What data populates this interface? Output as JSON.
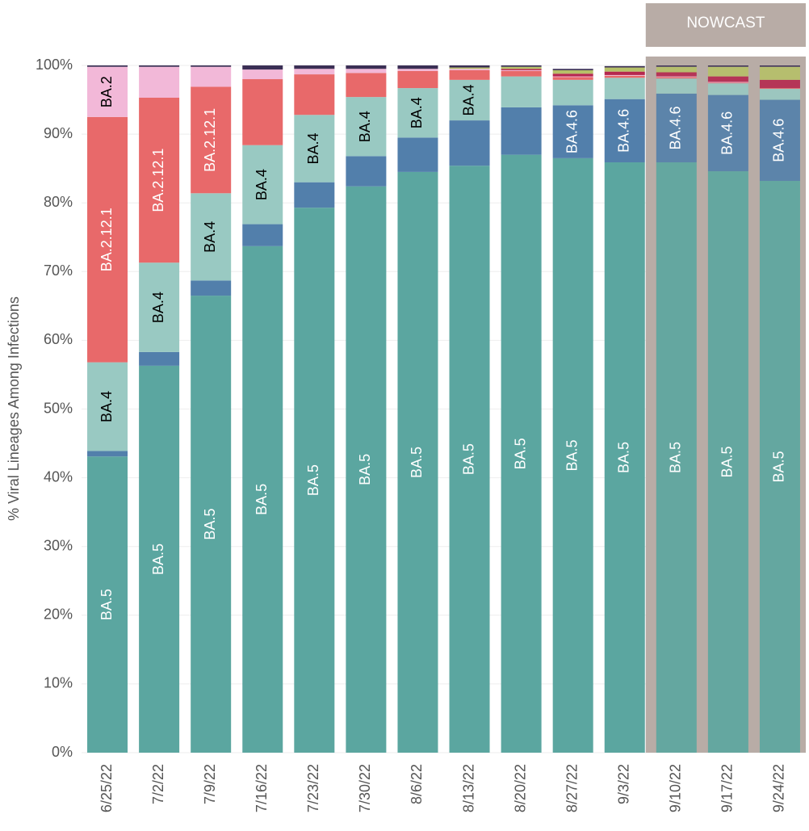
{
  "chart_data": {
    "type": "stacked-bar",
    "y_label": "% Viral Lineages Among Infections",
    "categories": [
      "6/25/22",
      "7/2/22",
      "7/9/22",
      "7/16/22",
      "7/23/22",
      "7/30/22",
      "8/6/22",
      "8/13/22",
      "8/20/22",
      "8/27/22",
      "9/3/22",
      "9/10/22",
      "9/17/22",
      "9/24/22"
    ],
    "nowcast": {
      "label": "NOWCAST",
      "from": "9/10/22"
    },
    "ylim": [
      0,
      100
    ],
    "yticks": [
      {
        "value": 0,
        "label": "0%"
      },
      {
        "value": 10,
        "label": "10%"
      },
      {
        "value": 20,
        "label": "20%"
      },
      {
        "value": 30,
        "label": "30%"
      },
      {
        "value": 40,
        "label": "40%"
      },
      {
        "value": 50,
        "label": "50%"
      },
      {
        "value": 60,
        "label": "60%"
      },
      {
        "value": 70,
        "label": "70%"
      },
      {
        "value": 80,
        "label": "80%"
      },
      {
        "value": 90,
        "label": "90%"
      },
      {
        "value": 100,
        "label": "100%"
      }
    ],
    "grid": true,
    "series": [
      {
        "name": "BA.5",
        "color": "#5ba6a0",
        "label_color": "#ffffff",
        "values": [
          43.1,
          56.3,
          66.5,
          73.7,
          79.3,
          82.4,
          84.5,
          85.4,
          87.0,
          86.5,
          85.9,
          85.9,
          84.6,
          83.2
        ],
        "value_labels": [
          "BA.5",
          "BA.5",
          "BA.5",
          "BA.5",
          "BA.5",
          "BA.5",
          "BA.5",
          "BA.5",
          "BA.5",
          "BA.5",
          "BA.5",
          "BA.5",
          "BA.5",
          "BA.5"
        ]
      },
      {
        "name": "BA.4.6",
        "color": "#527fab",
        "label_color": "#ffffff",
        "values": [
          0.8,
          2.0,
          2.2,
          3.2,
          3.7,
          4.4,
          5.0,
          6.6,
          6.9,
          7.7,
          9.2,
          10.0,
          11.1,
          11.8
        ],
        "value_labels": [
          null,
          null,
          null,
          null,
          null,
          null,
          null,
          null,
          null,
          "BA.4.6",
          "BA.4.6",
          "BA.4.6",
          "BA.4.6",
          "BA.4.6"
        ]
      },
      {
        "name": "BA.4",
        "color": "#99c9c2",
        "label_color": "#000000",
        "values": [
          12.9,
          13.0,
          12.7,
          11.5,
          9.8,
          8.6,
          7.2,
          5.9,
          4.5,
          3.7,
          3.1,
          2.2,
          1.7,
          1.6
        ],
        "value_labels": [
          "BA.4",
          "BA.4",
          "BA.4",
          "BA.4",
          "BA.4",
          "BA.4",
          "BA.4",
          "BA.4",
          null,
          null,
          null,
          null,
          null,
          null
        ]
      },
      {
        "name": "BA.2.12.1",
        "color": "#e8696a",
        "label_color": "#ffffff",
        "values": [
          35.7,
          24.0,
          15.5,
          9.6,
          5.9,
          3.5,
          2.5,
          1.4,
          0.8,
          0.4,
          0.3,
          0.2,
          0.1,
          0.1
        ],
        "value_labels": [
          "BA.2.12.1",
          "BA.2.12.1",
          "BA.2.12.1",
          null,
          null,
          null,
          null,
          null,
          null,
          null,
          null,
          null,
          null,
          null
        ]
      },
      {
        "name": "BA.2",
        "color": "#f2b8d8",
        "label_color": "#000000",
        "values": [
          7.3,
          4.5,
          2.9,
          1.4,
          0.8,
          0.6,
          0.3,
          0.2,
          0.1,
          0.1,
          0.1,
          0.1,
          0.1,
          0
        ],
        "value_labels": [
          "BA.2",
          null,
          null,
          null,
          null,
          null,
          null,
          null,
          null,
          null,
          null,
          null,
          null,
          null
        ]
      },
      {
        "color": "#b5284f",
        "values": [
          0,
          0,
          0,
          0,
          0,
          0,
          0,
          0,
          0.2,
          0.4,
          0.5,
          0.6,
          0.8,
          1.2
        ]
      },
      {
        "color": "#b6c068",
        "values": [
          0,
          0,
          0,
          0,
          0,
          0,
          0,
          0.2,
          0.3,
          0.5,
          0.6,
          0.8,
          1.4,
          1.9
        ]
      },
      {
        "color": "#3b2f55",
        "values": [
          0.2,
          0.2,
          0.2,
          0.6,
          0.5,
          0.5,
          0.5,
          0.3,
          0.2,
          0.2,
          0.2,
          0.2,
          0.2,
          0.2
        ]
      }
    ]
  }
}
